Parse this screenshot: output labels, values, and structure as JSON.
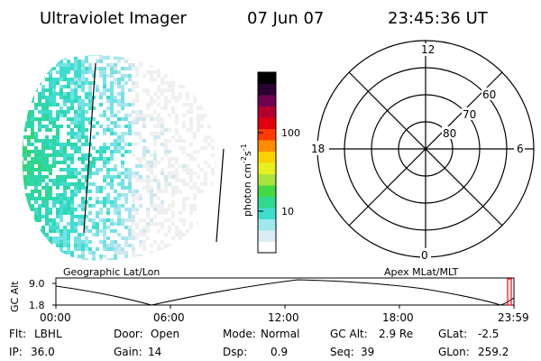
{
  "header": {
    "instrument": "Ultraviolet Imager",
    "date": "07 Jun 07",
    "time": "23:45:36 UT"
  },
  "imager": {
    "colors": [
      "#f0f0f0",
      "#cfe8ee",
      "#a6e6ee",
      "#74e2e2",
      "#3fdcd0",
      "#2ed7b0",
      "#30d690",
      "#35d36d"
    ]
  },
  "colorbar": {
    "unit_main": "photon cm",
    "unit_sup1": "-2",
    "unit_mid": "s",
    "unit_sup2": "-1",
    "tick_100": "100",
    "tick_10": "10",
    "stops": [
      "#ffffff",
      "#d8eef2",
      "#9fe8ec",
      "#40dcd0",
      "#30d890",
      "#44d844",
      "#a8e43c",
      "#e8f020",
      "#ffd000",
      "#ff8c00",
      "#ff3c00",
      "#e00010",
      "#b00030",
      "#700050",
      "#2a0030",
      "#000000"
    ]
  },
  "polar": {
    "label_12": "12",
    "label_6": "6",
    "label_18": "18",
    "label_0": "0",
    "lat_60": "60",
    "lat_70": "70",
    "lat_80": "80"
  },
  "timeline": {
    "left_title": "Geographic Lat/Lon",
    "right_title": "Apex MLat/MLT",
    "ylabel": "GC Alt",
    "y_top": "9.0",
    "y_bottom": "1.8",
    "ticks": [
      "00:00",
      "06:00",
      "12:00",
      "18:00",
      "23:59"
    ],
    "marker_color": "#ff0000"
  },
  "status": {
    "filter_label": "Flt:",
    "filter_value": "LBHL",
    "door_label": "Door:",
    "door_value": "Open",
    "mode_label": "Mode:",
    "mode_value": "Normal",
    "gcalt_label": "GC Alt:",
    "gcalt_value": "2.9 Re",
    "glat_label": "GLat:",
    "glat_value": "-2.5",
    "ip_label": "IP:",
    "ip_value": "36.0",
    "gain_label": "Gain:",
    "gain_value": "14",
    "dsp_label": "Dsp:",
    "dsp_value": "0.9",
    "seq_label": "Seq:",
    "seq_value": "39",
    "glon_label": "GLon:",
    "glon_value": "259.2"
  }
}
